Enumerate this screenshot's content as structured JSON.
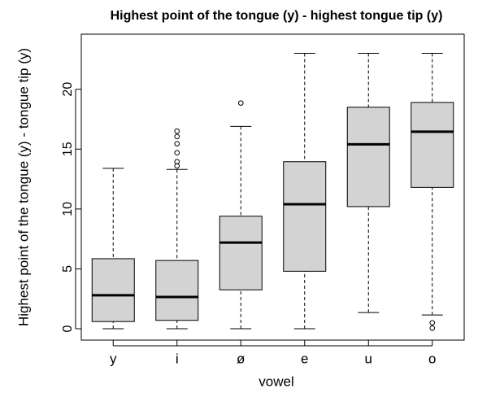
{
  "chart_data": {
    "type": "boxplot",
    "title": "Highest point of the tongue (y) - highest tongue tip (y)",
    "x_label": "vowel",
    "y_label": "Highest point of the tongue (y) - tongue tip (y)",
    "categories": [
      "y",
      "i",
      "ø",
      "e",
      "u",
      "o"
    ],
    "boxes": [
      {
        "min": 0,
        "q1": 0.6,
        "median": 2.8,
        "q3": 5.85,
        "max": 13.4,
        "outliers": []
      },
      {
        "min": 0,
        "q1": 0.7,
        "median": 2.65,
        "q3": 5.7,
        "max": 13.3,
        "outliers": [
          13.6,
          13.95,
          14.7,
          15.45,
          16.05,
          16.5
        ]
      },
      {
        "min": 0,
        "q1": 3.25,
        "median": 7.2,
        "q3": 9.4,
        "max": 16.9,
        "outliers": [
          18.85
        ]
      },
      {
        "min": 0,
        "q1": 4.8,
        "median": 10.4,
        "q3": 13.95,
        "max": 23,
        "outliers": []
      },
      {
        "min": 1.35,
        "q1": 10.2,
        "median": 15.4,
        "q3": 18.5,
        "max": 23,
        "outliers": []
      },
      {
        "min": 1.15,
        "q1": 11.8,
        "median": 16.45,
        "q3": 18.9,
        "max": 23,
        "outliers": [
          0.5,
          0.05
        ]
      }
    ],
    "color": "#d3d3d3",
    "ylim": [
      -0.95,
      24.6
    ],
    "yticks": [
      0,
      5,
      10,
      15,
      20
    ]
  }
}
